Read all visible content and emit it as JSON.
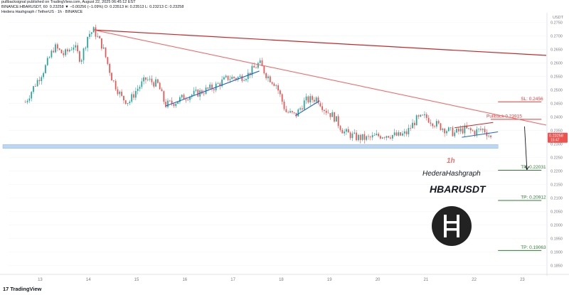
{
  "header": {
    "author_line": "pullbacksignal published on TradingView.com, August 22, 2025 06:45:12 EST",
    "symbol_line": "BINANCE:HBARUSDT, 60",
    "ohlc": "0.23258 ▼ −0.00256 (−1.09%) O: 0.23513 H: 0.23513 L: 0.23213 C: 0.23258",
    "legend": "Hedera Hashgraph / TetherUS · 1h · BINANCE"
  },
  "footer": {
    "brand": "TradingView",
    "logo_mark": "17"
  },
  "colors": {
    "bull": "#26a69a",
    "bear": "#ef5350",
    "upper_trendline": "#c62828",
    "mid_trendline": "#ef6c6c",
    "channel": "#1e63c9",
    "support_zone": "#bbd7f5",
    "sl": "#e53935",
    "tp": "#2e7d32",
    "pullback": "#e53935",
    "price_badge": "#ef5350"
  },
  "chart_data": {
    "type": "candlestick",
    "pair": "HBARUSDT",
    "exchange": "BINANCE",
    "timeframe": "1h",
    "x_tick_labels": [
      "13",
      "14",
      "15",
      "16",
      "17",
      "18",
      "19",
      "20",
      "21",
      "22",
      "23"
    ],
    "ylim": [
      0.1823,
      0.2775
    ],
    "y_ticks": [
      0.275,
      0.27,
      0.265,
      0.26,
      0.255,
      0.25,
      0.245,
      0.24,
      0.235,
      0.23,
      0.225,
      0.22,
      0.215,
      0.21,
      0.205,
      0.2,
      0.195,
      0.19,
      0.185
    ],
    "y_axis_title": "USDT",
    "current_price": 0.23258,
    "current_price_label": "0.23258",
    "current_time_label": "15:47",
    "pivot_points": [
      [
        12.7,
        0.2455
      ],
      [
        12.9,
        0.252
      ],
      [
        13.1,
        0.258
      ],
      [
        13.3,
        0.266
      ],
      [
        13.5,
        0.263
      ],
      [
        13.7,
        0.2665
      ],
      [
        13.85,
        0.261
      ],
      [
        14.0,
        0.2705
      ],
      [
        14.12,
        0.272
      ],
      [
        14.3,
        0.266
      ],
      [
        14.5,
        0.254
      ],
      [
        14.7,
        0.247
      ],
      [
        14.85,
        0.2455
      ],
      [
        15.0,
        0.25
      ],
      [
        15.2,
        0.254
      ],
      [
        15.45,
        0.252
      ],
      [
        15.6,
        0.2445
      ],
      [
        15.8,
        0.2455
      ],
      [
        16.0,
        0.2475
      ],
      [
        16.3,
        0.249
      ],
      [
        16.6,
        0.251
      ],
      [
        16.9,
        0.2545
      ],
      [
        17.1,
        0.2545
      ],
      [
        17.3,
        0.2555
      ],
      [
        17.55,
        0.26
      ],
      [
        17.7,
        0.2555
      ],
      [
        17.9,
        0.252
      ],
      [
        18.1,
        0.242
      ],
      [
        18.3,
        0.2405
      ],
      [
        18.5,
        0.246
      ],
      [
        18.75,
        0.247
      ],
      [
        18.9,
        0.243
      ],
      [
        19.1,
        0.24
      ],
      [
        19.3,
        0.2345
      ],
      [
        19.55,
        0.2325
      ],
      [
        19.8,
        0.232
      ],
      [
        20.0,
        0.233
      ],
      [
        20.2,
        0.2335
      ],
      [
        20.45,
        0.233
      ],
      [
        20.6,
        0.234
      ],
      [
        20.8,
        0.239
      ],
      [
        21.0,
        0.24
      ],
      [
        21.2,
        0.2375
      ],
      [
        21.4,
        0.2355
      ],
      [
        21.6,
        0.234
      ],
      [
        21.8,
        0.2355
      ],
      [
        22.0,
        0.2345
      ],
      [
        22.2,
        0.2355
      ],
      [
        22.35,
        0.2326
      ]
    ],
    "trendlines": [
      {
        "name": "upper",
        "from": [
          14.12,
          0.2722
        ],
        "to": [
          23.5,
          0.2628
        ]
      },
      {
        "name": "descending",
        "from": [
          14.12,
          0.2722
        ],
        "to": [
          23.5,
          0.237
        ]
      }
    ],
    "channels": [
      {
        "from": [
          15.6,
          0.244
        ],
        "to": [
          17.55,
          0.257
        ]
      },
      {
        "from": [
          18.3,
          0.2405
        ],
        "to": [
          18.8,
          0.246
        ]
      },
      {
        "from": [
          21.75,
          0.2325
        ],
        "to": [
          22.5,
          0.2345
        ]
      }
    ],
    "wedge": {
      "upper": [
        [
          21.6,
          0.236
        ],
        [
          22.4,
          0.238
        ]
      ],
      "lower": [
        [
          21.75,
          0.2325
        ],
        [
          22.5,
          0.2345
        ]
      ]
    },
    "support_zone": {
      "from_x": 12.35,
      "to_x": 22.5,
      "top": 0.2298,
      "bottom": 0.2284
    },
    "levels": [
      {
        "name": "SL",
        "label": "SL: 0.2456",
        "value": 0.2456,
        "from_x": 22.5,
        "to_x": 23.4
      },
      {
        "name": "Pullback",
        "label": "Pullback 0.23915",
        "value": 0.23915,
        "from_x": 22.35,
        "to_x": 23.4
      },
      {
        "name": "TP1",
        "label": "TP: 0.22031",
        "value": 0.22031,
        "from_x": 22.5,
        "to_x": 23.4
      },
      {
        "name": "TP2",
        "label": "TP: 0.20912",
        "value": 0.20912,
        "from_x": 22.5,
        "to_x": 23.4
      },
      {
        "name": "TP3",
        "label": "TP: 0.19063",
        "value": 0.19063,
        "from_x": 22.5,
        "to_x": 23.4
      }
    ],
    "projection_arrow": {
      "from": [
        23.05,
        0.2365
      ],
      "to": [
        23.1,
        0.2205
      ]
    },
    "annotations": {
      "timeframe": "1h",
      "name": "HederaHashgraph",
      "ticker": "HBARUSDT"
    }
  }
}
